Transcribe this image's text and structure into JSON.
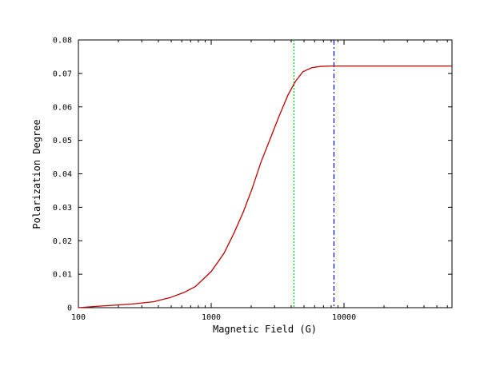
{
  "chart_data": {
    "type": "line",
    "xlabel": "Magnetic Field (G)",
    "ylabel": "Polarization Degree",
    "x_scale": "log",
    "xlim": [
      100,
      65000
    ],
    "ylim": [
      0,
      0.08
    ],
    "grid": false,
    "x_ticks": [
      {
        "value": 100,
        "label": "100"
      },
      {
        "value": 1000,
        "label": "1000"
      },
      {
        "value": 10000,
        "label": "10000"
      }
    ],
    "y_ticks": [
      {
        "value": 0,
        "label": "0"
      },
      {
        "value": 0.01,
        "label": "0.01"
      },
      {
        "value": 0.02,
        "label": "0.02"
      },
      {
        "value": 0.03,
        "label": "0.03"
      },
      {
        "value": 0.04,
        "label": "0.04"
      },
      {
        "value": 0.05,
        "label": "0.05"
      },
      {
        "value": 0.06,
        "label": "0.06"
      },
      {
        "value": 0.07,
        "label": "0.07"
      },
      {
        "value": 0.08,
        "label": "0.08"
      }
    ],
    "series": [
      {
        "color": "#c00000",
        "x": [
          100,
          150,
          200,
          270,
          370,
          490,
          620,
          760,
          1000,
          1250,
          1480,
          1740,
          2030,
          2360,
          2770,
          3240,
          3780,
          4300,
          4900,
          5700,
          6700,
          8000,
          10000,
          20000,
          40000,
          65000
        ],
        "y": [
          0.0,
          0.0005,
          0.0008,
          0.0012,
          0.0018,
          0.003,
          0.0045,
          0.0063,
          0.0108,
          0.0163,
          0.0222,
          0.0285,
          0.0355,
          0.0433,
          0.0503,
          0.0572,
          0.0635,
          0.0676,
          0.0705,
          0.0717,
          0.0721,
          0.0722,
          0.0722,
          0.0722,
          0.0722,
          0.0722
        ]
      }
    ],
    "vlines": [
      {
        "x": 4200,
        "color": "#00c000",
        "style": "dotted"
      },
      {
        "x": 8400,
        "color": "#0000c0",
        "style": "dash-dot"
      }
    ]
  }
}
